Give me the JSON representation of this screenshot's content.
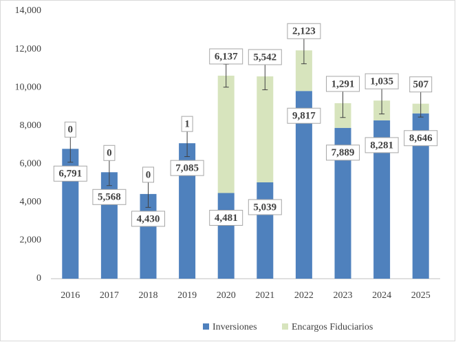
{
  "chart_data": {
    "type": "stacked_bar",
    "categories": [
      "2016",
      "2017",
      "2018",
      "2019",
      "2020",
      "2021",
      "2022",
      "2023",
      "2024",
      "2025"
    ],
    "series": [
      {
        "name": "Inversiones",
        "color": "#4f81bd",
        "values": [
          6791,
          5568,
          4430,
          7085,
          4481,
          5039,
          9817,
          7889,
          8281,
          8646
        ],
        "value_labels": [
          "6,791",
          "5,568",
          "4,430",
          "7,085",
          "4,481",
          "5,039",
          "9,817",
          "7,889",
          "8,281",
          "8,646"
        ]
      },
      {
        "name": "Encargos Fiduciarios",
        "color": "#d7e4bd",
        "values": [
          0,
          0,
          0,
          1,
          6137,
          5542,
          2123,
          1291,
          1035,
          507
        ],
        "value_labels": [
          "0",
          "0",
          "0",
          "1",
          "6,137",
          "5,542",
          "2,123",
          "1,291",
          "1,035",
          "507"
        ],
        "errors": [
          700,
          700,
          700,
          700,
          600,
          700,
          700,
          750,
          700,
          700
        ]
      }
    ],
    "ylim": [
      0,
      14000
    ],
    "yticks": [
      0,
      {
        "value": 2000,
        "label": "2,000"
      },
      {
        "value": 4000,
        "label": "4,000"
      },
      {
        "value": 6000,
        "label": "6,000"
      },
      {
        "value": 8000,
        "label": "8,000"
      },
      {
        "value": 10000,
        "label": "10,000"
      },
      {
        "value": 12000,
        "label": "12,000"
      },
      {
        "value": 14000,
        "label": "14,000"
      }
    ],
    "legend": "bottom"
  }
}
